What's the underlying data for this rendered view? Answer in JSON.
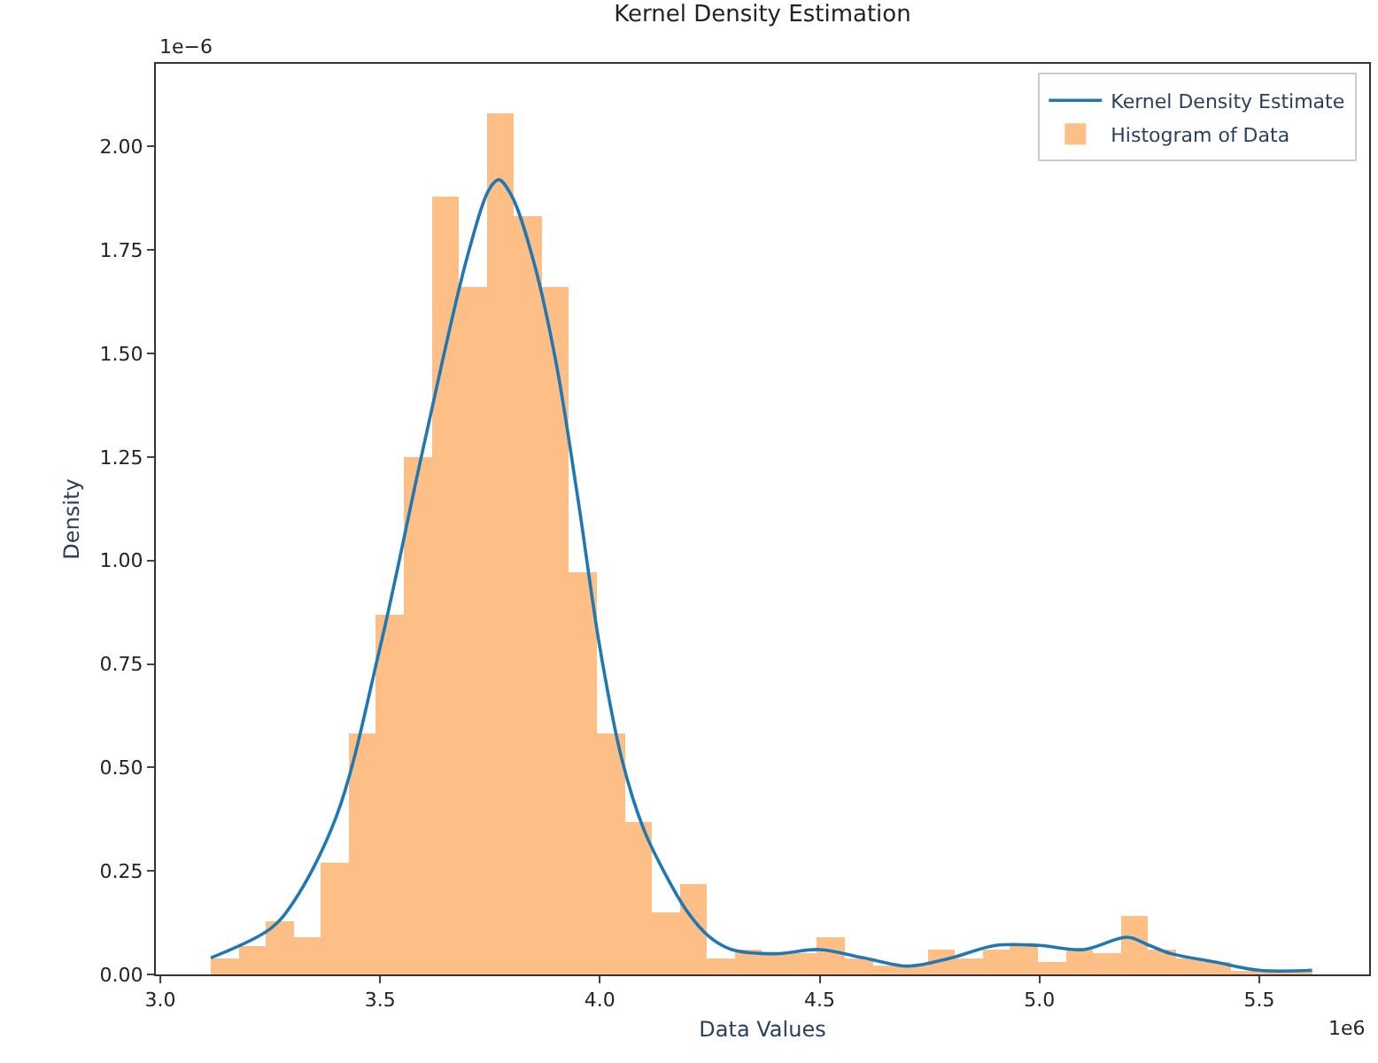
{
  "chart_data": {
    "type": "histogram",
    "title": "Kernel Density Estimation",
    "xlabel": "Data Values",
    "ylabel": "Density",
    "annotations": [
      "1e−6",
      "1e6"
    ],
    "xlim": [
      2.99,
      5.75
    ],
    "xticks": [
      {
        "value": 3,
        "label": "3.0"
      },
      3.5,
      {
        "value": 4,
        "label": "4.0"
      },
      4.5,
      {
        "value": 5,
        "label": "5.0"
      },
      5.5
    ],
    "ylim": [
      0,
      2.2
    ],
    "yticks": [
      {
        "value": 0,
        "label": "0.00"
      },
      {
        "value": 0.25,
        "label": "0.25"
      },
      {
        "value": 0.5,
        "label": "0.50"
      },
      {
        "value": 0.75,
        "label": "0.75"
      },
      {
        "value": 1,
        "label": "1.00"
      },
      {
        "value": 1.25,
        "label": "1.25"
      },
      {
        "value": 1.5,
        "label": "1.50"
      },
      {
        "value": 1.75,
        "label": "1.75"
      },
      {
        "value": 2,
        "label": "2.00"
      }
    ],
    "legend": "top right",
    "series": [
      {
        "name": "Kernel Density Estimate",
        "type": "line",
        "color": "#1f77b4",
        "x": [
          3.115,
          3.25,
          3.3,
          3.4,
          3.5,
          3.6,
          3.7,
          3.75,
          3.77,
          3.8,
          3.85,
          3.9,
          3.95,
          4.0,
          4.05,
          4.1,
          4.15,
          4.2,
          4.25,
          4.3,
          4.4,
          4.5,
          4.6,
          4.7,
          4.8,
          4.9,
          5.0,
          5.1,
          5.2,
          5.25,
          5.3,
          5.4,
          5.5,
          5.62
        ],
        "values": [
          0.04,
          0.11,
          0.17,
          0.38,
          0.79,
          1.28,
          1.74,
          1.9,
          1.92,
          1.88,
          1.72,
          1.48,
          1.15,
          0.79,
          0.52,
          0.35,
          0.24,
          0.15,
          0.09,
          0.06,
          0.05,
          0.06,
          0.04,
          0.02,
          0.04,
          0.07,
          0.07,
          0.06,
          0.09,
          0.07,
          0.05,
          0.03,
          0.01,
          0.01
        ]
      },
      {
        "name": "Histogram of Data",
        "color": "#fdbf86",
        "bins": [
          3.115,
          3.178,
          3.24,
          3.303,
          3.366,
          3.429,
          3.491,
          3.554,
          3.617,
          3.679,
          3.742,
          3.805,
          3.867,
          3.93,
          3.993,
          4.056,
          4.118,
          4.181,
          4.244,
          4.306,
          4.369,
          4.432,
          4.494,
          4.557,
          4.62,
          4.683,
          4.745,
          4.808,
          4.871,
          4.933,
          4.996,
          5.059,
          5.121,
          5.184,
          5.247,
          5.31,
          5.372,
          5.435,
          5.498,
          5.56,
          5.623
        ],
        "values": [
          0.04,
          0.07,
          0.13,
          0.09,
          0.27,
          0.58,
          0.87,
          1.25,
          1.88,
          1.66,
          2.08,
          1.83,
          1.66,
          0.97,
          0.58,
          0.37,
          0.15,
          0.22,
          0.04,
          0.06,
          0.05,
          0.05,
          0.09,
          0.04,
          0.02,
          0.02,
          0.06,
          0.04,
          0.06,
          0.07,
          0.03,
          0.06,
          0.05,
          0.14,
          0.06,
          0.04,
          0.03,
          0.01,
          0.01,
          0.01
        ]
      }
    ]
  }
}
